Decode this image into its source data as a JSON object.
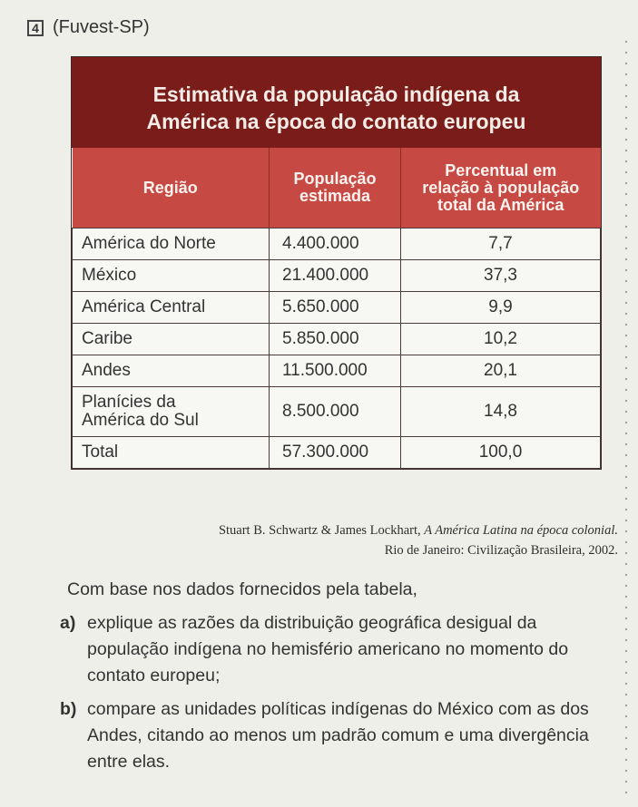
{
  "question": {
    "number": "4",
    "source": "(Fuvest-SP)"
  },
  "table": {
    "title_line1": "Estimativa da população indígena da",
    "title_line2": "América na época do contato europeu",
    "headers": {
      "region": "Região",
      "population_line1": "População",
      "population_line2": "estimada",
      "percent_line1": "Percentual em",
      "percent_line2": "relação à população",
      "percent_line3": "total da América"
    },
    "rows": [
      {
        "region_line1": "América do Norte",
        "region_line2": "",
        "population": "4.400.000",
        "percent": "7,7"
      },
      {
        "region_line1": "México",
        "region_line2": "",
        "population": "21.400.000",
        "percent": "37,3"
      },
      {
        "region_line1": "América Central",
        "region_line2": "",
        "population": "5.650.000",
        "percent": "9,9"
      },
      {
        "region_line1": "Caribe",
        "region_line2": "",
        "population": "5.850.000",
        "percent": "10,2"
      },
      {
        "region_line1": "Andes",
        "region_line2": "",
        "population": "11.500.000",
        "percent": "20,1"
      },
      {
        "region_line1": "Planícies da",
        "region_line2": "América do Sul",
        "population": "8.500.000",
        "percent": "14,8"
      },
      {
        "region_line1": "Total",
        "region_line2": "",
        "population": "57.300.000",
        "percent": "100,0"
      }
    ]
  },
  "citation": {
    "authors": "Stuart B. Schwartz & James Lockhart, ",
    "book": "A América Latina na época colonial.",
    "publisher": "Rio de Janeiro: Civilização Brasileira, 2002."
  },
  "body": {
    "intro": "Com base nos dados fornecidos pela tabela,",
    "item_a_marker": "a)",
    "item_a": "explique as razões da distribuição geográfica desigual da população indígena no hemisfério americano no momento do contato europeu;",
    "item_b_marker": "b)",
    "item_b": "compare as unidades políticas indígenas do México com as dos Andes, citando ao menos um padrão comum e uma divergência entre elas."
  },
  "colors": {
    "title_bg": "#7a1d1a",
    "header_bg": "#c64a43",
    "page_bg": "#efefea"
  }
}
